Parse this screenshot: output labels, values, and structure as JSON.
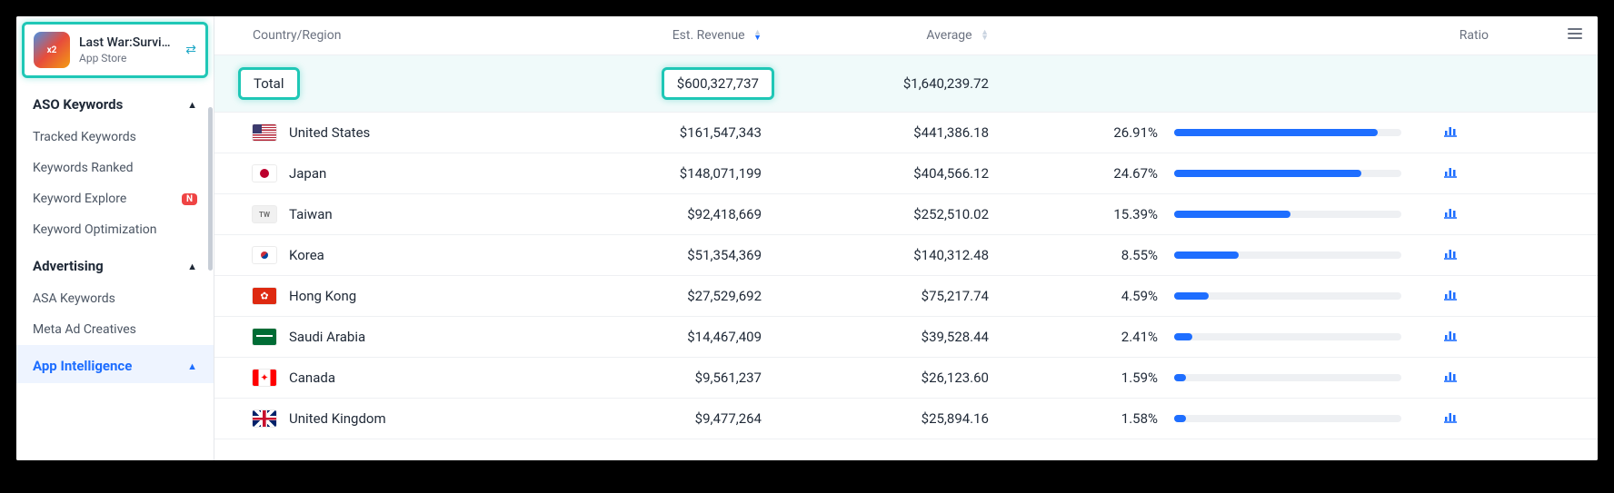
{
  "app": {
    "title": "Last War:Survi…",
    "store": "App Store",
    "icon_text": "x2"
  },
  "sidebar": {
    "sections": [
      {
        "title": "ASO Keywords",
        "items": [
          "Tracked Keywords",
          "Keywords Ranked",
          "Keyword Explore",
          "Keyword Optimization"
        ],
        "badges": {
          "2": "N"
        }
      },
      {
        "title": "Advertising",
        "items": [
          "ASA Keywords",
          "Meta Ad Creatives"
        ]
      },
      {
        "title": "App Intelligence",
        "active": true
      }
    ]
  },
  "table": {
    "columns": {
      "region": "Country/Region",
      "revenue": "Est. Revenue",
      "average": "Average",
      "ratio": "Ratio"
    },
    "total": {
      "label": "Total",
      "revenue": "$600,327,737",
      "average": "$1,640,239.72"
    },
    "ratio_bar_max_percent": 30,
    "rows": [
      {
        "flag": "us",
        "region": "United States",
        "revenue": "$161,547,343",
        "average": "$441,386.18",
        "ratio": "26.91%",
        "ratio_pct": 26.91
      },
      {
        "flag": "jp",
        "region": "Japan",
        "revenue": "$148,071,199",
        "average": "$404,566.12",
        "ratio": "24.67%",
        "ratio_pct": 24.67
      },
      {
        "flag": "tw",
        "flag_text": "TW",
        "region": "Taiwan",
        "revenue": "$92,418,669",
        "average": "$252,510.02",
        "ratio": "15.39%",
        "ratio_pct": 15.39
      },
      {
        "flag": "kr",
        "region": "Korea",
        "revenue": "$51,354,369",
        "average": "$140,312.48",
        "ratio": "8.55%",
        "ratio_pct": 8.55
      },
      {
        "flag": "hk",
        "region": "Hong Kong",
        "revenue": "$27,529,692",
        "average": "$75,217.74",
        "ratio": "4.59%",
        "ratio_pct": 4.59
      },
      {
        "flag": "sa",
        "region": "Saudi Arabia",
        "revenue": "$14,467,409",
        "average": "$39,528.44",
        "ratio": "2.41%",
        "ratio_pct": 2.41
      },
      {
        "flag": "ca",
        "region": "Canada",
        "revenue": "$9,561,237",
        "average": "$26,123.60",
        "ratio": "1.59%",
        "ratio_pct": 1.59
      },
      {
        "flag": "gb",
        "region": "United Kingdom",
        "revenue": "$9,477,264",
        "average": "$25,894.16",
        "ratio": "1.58%",
        "ratio_pct": 1.58
      }
    ]
  },
  "colors": {
    "highlight_border": "#1fc7b6",
    "primary_blue": "#1e6eff",
    "bar_track": "#eef0f3"
  }
}
